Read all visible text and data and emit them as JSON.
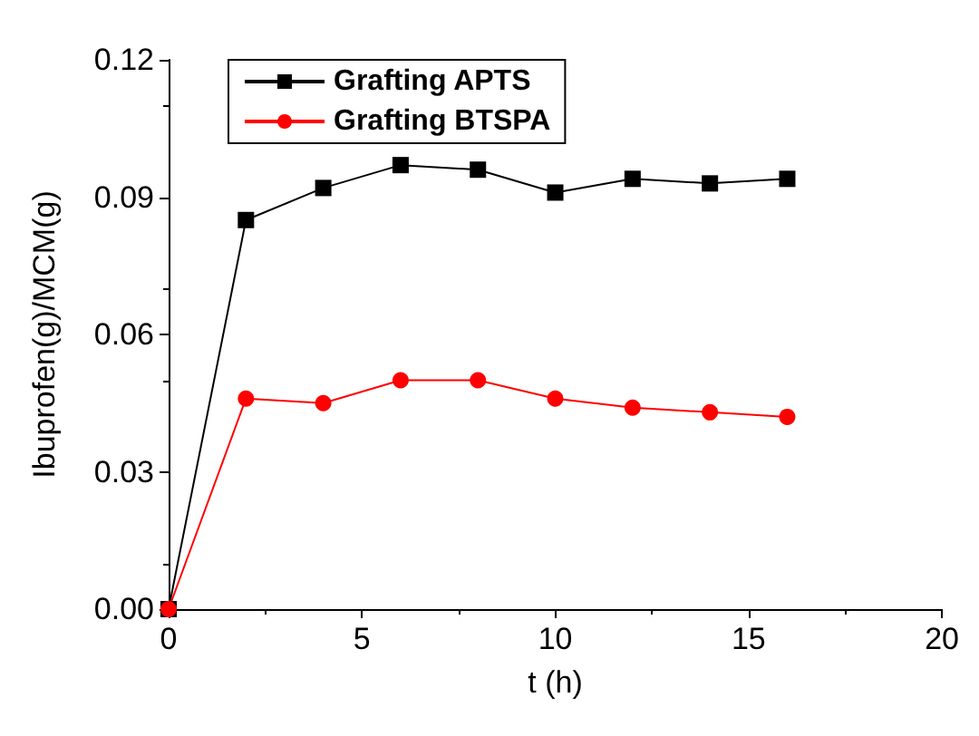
{
  "chart_data": {
    "type": "line",
    "xlabel": "t (h)",
    "ylabel": "Ibuprofen(g)/MCM(g)",
    "x": [
      0,
      2,
      4,
      6,
      8,
      10,
      12,
      14,
      16
    ],
    "series": [
      {
        "name": "Grafting APTS",
        "color": "#000000",
        "marker": "square",
        "values": [
          0,
          0.085,
          0.092,
          0.097,
          0.096,
          0.091,
          0.094,
          0.093,
          0.094
        ]
      },
      {
        "name": "Grafting BTSPA",
        "color": "#ff0000",
        "marker": "circle",
        "values": [
          0,
          0.046,
          0.045,
          0.05,
          0.05,
          0.046,
          0.044,
          0.043,
          0.042
        ]
      }
    ],
    "xlim": [
      0,
      20
    ],
    "xticks": [
      0,
      5,
      10,
      15,
      20
    ],
    "ylim": [
      0,
      0.12
    ],
    "yticks": [
      {
        "value": 0,
        "label": "0.00"
      },
      0.03,
      0.06,
      0.09,
      0.12
    ],
    "grid": false,
    "legend": "top left",
    "line_style": "solid"
  }
}
